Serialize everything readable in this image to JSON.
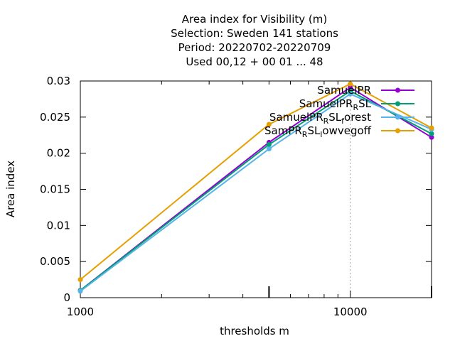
{
  "chart_data": {
    "type": "line",
    "title_lines": [
      "Area index  for Visibility (m)",
      "Selection: Sweden    141 stations",
      "Period: 20220702-20220709",
      "Used  00,12  + 00 01 ... 48"
    ],
    "xlabel": "thresholds m",
    "ylabel": "Area index",
    "x_scale": "log",
    "xlim": [
      1000,
      20000
    ],
    "ylim": [
      0,
      0.03
    ],
    "x_ticks": [
      1000,
      10000
    ],
    "x_tick_labels": [
      "1000",
      "10000"
    ],
    "y_ticks": [
      0,
      0.005,
      0.01,
      0.015,
      0.02,
      0.025,
      0.03
    ],
    "y_tick_labels": [
      "0",
      "0.005",
      "0.01",
      "0.015",
      "0.02",
      "0.025",
      "0.03"
    ],
    "grid": "x at 10000",
    "legend_position": "top-right",
    "series": [
      {
        "name_parts": [
          [
            "SamuelPR",
            ""
          ]
        ],
        "color": "#9400d3",
        "x": [
          1000,
          5000,
          10000,
          20000
        ],
        "values": [
          0.001,
          0.0215,
          0.0291,
          0.0222
        ]
      },
      {
        "name_parts": [
          [
            "SamuelPR",
            ""
          ],
          [
            "R",
            "sub"
          ],
          [
            "SL",
            ""
          ]
        ],
        "color": "#009e73",
        "x": [
          1000,
          5000,
          10000,
          20000
        ],
        "values": [
          0.001,
          0.0212,
          0.0286,
          0.0227
        ]
      },
      {
        "name_parts": [
          [
            "SamuelPR",
            ""
          ],
          [
            "R",
            "sub"
          ],
          [
            "SL",
            ""
          ],
          [
            "f",
            "sub"
          ],
          [
            "orest",
            ""
          ]
        ],
        "color": "#56b4e9",
        "x": [
          1000,
          5000,
          10000,
          20000
        ],
        "values": [
          0.0009,
          0.0206,
          0.0282,
          0.0233
        ]
      },
      {
        "name_parts": [
          [
            "SamPR",
            ""
          ],
          [
            "R",
            "sub"
          ],
          [
            "SL",
            ""
          ],
          [
            "l",
            "sub"
          ],
          [
            "owvegoff",
            ""
          ]
        ],
        "color": "#e69f00",
        "x": [
          1000,
          5000,
          10000,
          20000
        ],
        "values": [
          0.0025,
          0.024,
          0.0296,
          0.0235
        ]
      }
    ]
  }
}
